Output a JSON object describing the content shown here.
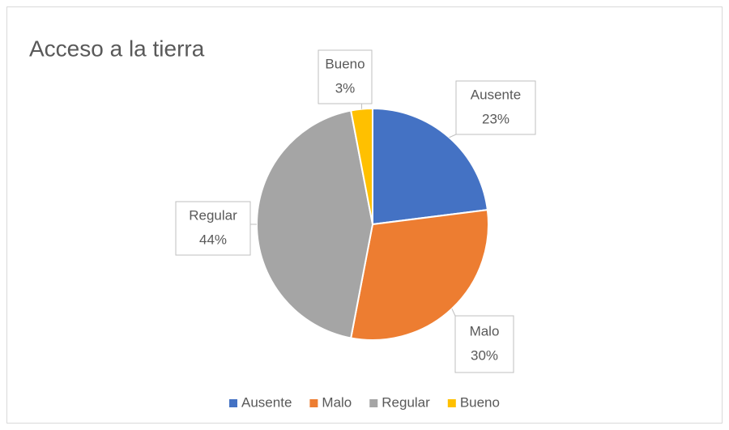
{
  "chart_data": {
    "type": "pie",
    "title": "Acceso a la tierra",
    "categories": [
      "Ausente",
      "Malo",
      "Regular",
      "Bueno"
    ],
    "values": [
      23,
      30,
      44,
      3
    ],
    "value_labels": [
      "23%",
      "30%",
      "44%",
      "3%"
    ],
    "colors": [
      "#4472c4",
      "#ed7d31",
      "#a5a5a5",
      "#ffc000"
    ],
    "legend": "bottom"
  }
}
